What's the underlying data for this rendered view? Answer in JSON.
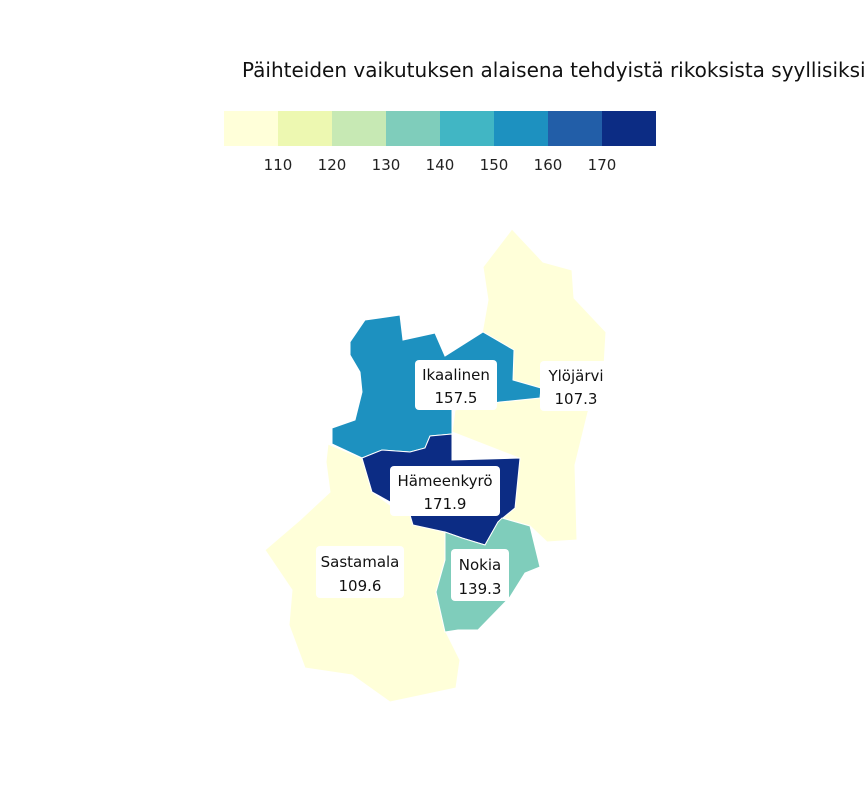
{
  "title": "Päihteiden vaikutuksen alaisena tehdyistä rikoksista syyllisiksi",
  "legend": {
    "colors": [
      "#ffffd9",
      "#edf8b1",
      "#c7e9b4",
      "#7fcdbb",
      "#41b6c4",
      "#1d91c0",
      "#225ea8",
      "#0c2c84"
    ],
    "ticks": [
      "110",
      "120",
      "130",
      "140",
      "150",
      "160",
      "170"
    ]
  },
  "regions": [
    {
      "name": "Ylöjärvi",
      "value": "107.3",
      "fill": "#ffffd9"
    },
    {
      "name": "Sastamala",
      "value": "109.6",
      "fill": "#ffffd9"
    },
    {
      "name": "Ikaalinen",
      "value": "157.5",
      "fill": "#1d91c0"
    },
    {
      "name": "Hämeenkyrö",
      "value": "171.9",
      "fill": "#0c2c84"
    },
    {
      "name": "Nokia",
      "value": "139.3",
      "fill": "#7fcdbb"
    }
  ]
}
